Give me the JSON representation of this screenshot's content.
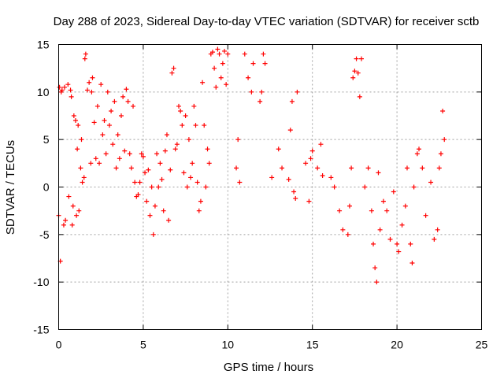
{
  "chart_data": {
    "type": "scatter",
    "title": "Day 288 of 2023, Sidereal Day-to-day VTEC variation (SDTVAR) for receiver sctb",
    "xlabel": "GPS time / hours",
    "ylabel": "SDTVAR / TECUs",
    "xlim": [
      0,
      25
    ],
    "ylim": [
      -15,
      15
    ],
    "xticks": [
      0,
      5,
      10,
      15,
      20,
      25
    ],
    "yticks": [
      -15,
      -10,
      -5,
      0,
      5,
      10,
      15
    ],
    "xtick_labels": [
      "0",
      "5",
      "10",
      "15",
      "20",
      "25"
    ],
    "ytick_labels": [
      "-15",
      "-10",
      "-5",
      "0",
      "5",
      "10",
      "15"
    ],
    "grid": true,
    "marker": "+",
    "series": [
      {
        "name": "SDTVAR",
        "color": "#ff0000",
        "x": [
          0.0,
          0.05,
          0.1,
          0.15,
          0.2,
          0.3,
          0.35,
          0.4,
          0.55,
          0.6,
          0.7,
          0.75,
          0.8,
          0.85,
          0.9,
          1.0,
          1.05,
          1.1,
          1.15,
          1.2,
          1.3,
          1.35,
          1.4,
          1.5,
          1.55,
          1.6,
          1.7,
          1.8,
          1.9,
          1.95,
          2.0,
          2.1,
          2.2,
          2.3,
          2.4,
          2.5,
          2.6,
          2.7,
          2.8,
          2.9,
          3.0,
          3.1,
          3.2,
          3.3,
          3.4,
          3.5,
          3.6,
          3.7,
          3.8,
          3.9,
          4.0,
          4.1,
          4.2,
          4.3,
          4.4,
          4.5,
          4.6,
          4.7,
          4.8,
          4.9,
          5.0,
          5.1,
          5.2,
          5.3,
          5.4,
          5.5,
          5.6,
          5.7,
          5.8,
          5.9,
          6.0,
          6.1,
          6.2,
          6.3,
          6.4,
          6.5,
          6.6,
          6.7,
          6.8,
          6.9,
          7.0,
          7.1,
          7.2,
          7.3,
          7.4,
          7.5,
          7.6,
          7.7,
          7.8,
          7.9,
          8.0,
          8.1,
          8.2,
          8.3,
          8.4,
          8.5,
          8.6,
          8.7,
          8.8,
          8.9,
          9.0,
          9.1,
          9.2,
          9.3,
          9.4,
          9.5,
          9.6,
          9.7,
          9.8,
          9.9,
          10.0,
          10.5,
          10.6,
          10.7,
          11.0,
          11.2,
          11.4,
          11.5,
          11.9,
          12.0,
          12.1,
          12.2,
          12.6,
          13.0,
          13.2,
          13.6,
          13.7,
          13.8,
          13.9,
          14.0,
          14.1,
          14.6,
          14.8,
          14.9,
          15.0,
          15.3,
          15.5,
          15.6,
          16.1,
          16.3,
          16.6,
          16.8,
          17.1,
          17.2,
          17.3,
          17.4,
          17.5,
          17.6,
          17.7,
          17.8,
          17.9,
          18.1,
          18.3,
          18.5,
          18.6,
          18.7,
          18.8,
          18.9,
          19.0,
          19.2,
          19.4,
          19.6,
          19.8,
          20.0,
          20.1,
          20.3,
          20.5,
          20.6,
          20.8,
          20.9,
          21.0,
          21.2,
          21.3,
          21.5,
          21.7,
          22.0,
          22.2,
          22.4,
          22.5,
          22.6,
          22.7,
          22.8
        ],
        "y": [
          -3.0,
          10.5,
          -7.8,
          10.0,
          10.2,
          -4.0,
          10.5,
          -3.5,
          10.8,
          -1.0,
          10.2,
          9.5,
          -4.0,
          -2.0,
          7.5,
          7.0,
          -3.0,
          4.0,
          6.5,
          -2.5,
          2.0,
          5.0,
          0.5,
          1.0,
          13.5,
          14.0,
          10.2,
          11.0,
          2.5,
          10.0,
          11.5,
          6.8,
          3.0,
          8.5,
          2.5,
          10.8,
          5.5,
          7.0,
          3.5,
          10.0,
          6.5,
          8.0,
          4.5,
          9.0,
          2.0,
          5.5,
          3.0,
          7.5,
          9.5,
          3.8,
          10.3,
          9.0,
          3.5,
          2.0,
          8.5,
          0.5,
          -1.0,
          -0.8,
          0.5,
          3.5,
          3.2,
          1.5,
          -1.5,
          1.8,
          -3.0,
          0.0,
          -5.0,
          -2.0,
          3.5,
          0.0,
          2.5,
          0.8,
          -2.5,
          3.8,
          5.5,
          -3.5,
          1.8,
          12.0,
          12.5,
          4.0,
          4.5,
          8.5,
          8.0,
          6.5,
          1.5,
          7.5,
          0.0,
          5.0,
          1.0,
          2.5,
          8.5,
          6.5,
          0.5,
          -2.5,
          -1.5,
          11.0,
          6.5,
          0.0,
          4.0,
          2.5,
          14.0,
          14.2,
          12.5,
          10.5,
          14.5,
          14.0,
          11.5,
          13.0,
          14.3,
          10.8,
          14.0,
          2.0,
          5.0,
          0.5,
          14.0,
          11.5,
          10.0,
          13.0,
          9.0,
          10.0,
          14.0,
          13.0,
          1.0,
          4.0,
          2.0,
          0.8,
          6.0,
          9.0,
          -0.5,
          -1.2,
          10.0,
          2.5,
          -1.5,
          3.0,
          3.8,
          2.0,
          4.5,
          1.2,
          1.0,
          0.0,
          -2.5,
          -4.5,
          -5.0,
          -2.0,
          2.0,
          11.5,
          12.2,
          13.5,
          12.0,
          9.5,
          13.5,
          0.0,
          2.0,
          -2.5,
          -6.0,
          -8.5,
          -10.0,
          1.5,
          -4.5,
          -1.5,
          -2.5,
          -5.5,
          -0.5,
          -6.0,
          -6.8,
          -4.0,
          -2.0,
          2.0,
          -6.0,
          -8.0,
          0.0,
          3.5,
          4.0,
          2.0,
          -3.0,
          0.5,
          -5.5,
          -4.5,
          2.0,
          3.5,
          8.0,
          5.0
        ]
      }
    ]
  }
}
